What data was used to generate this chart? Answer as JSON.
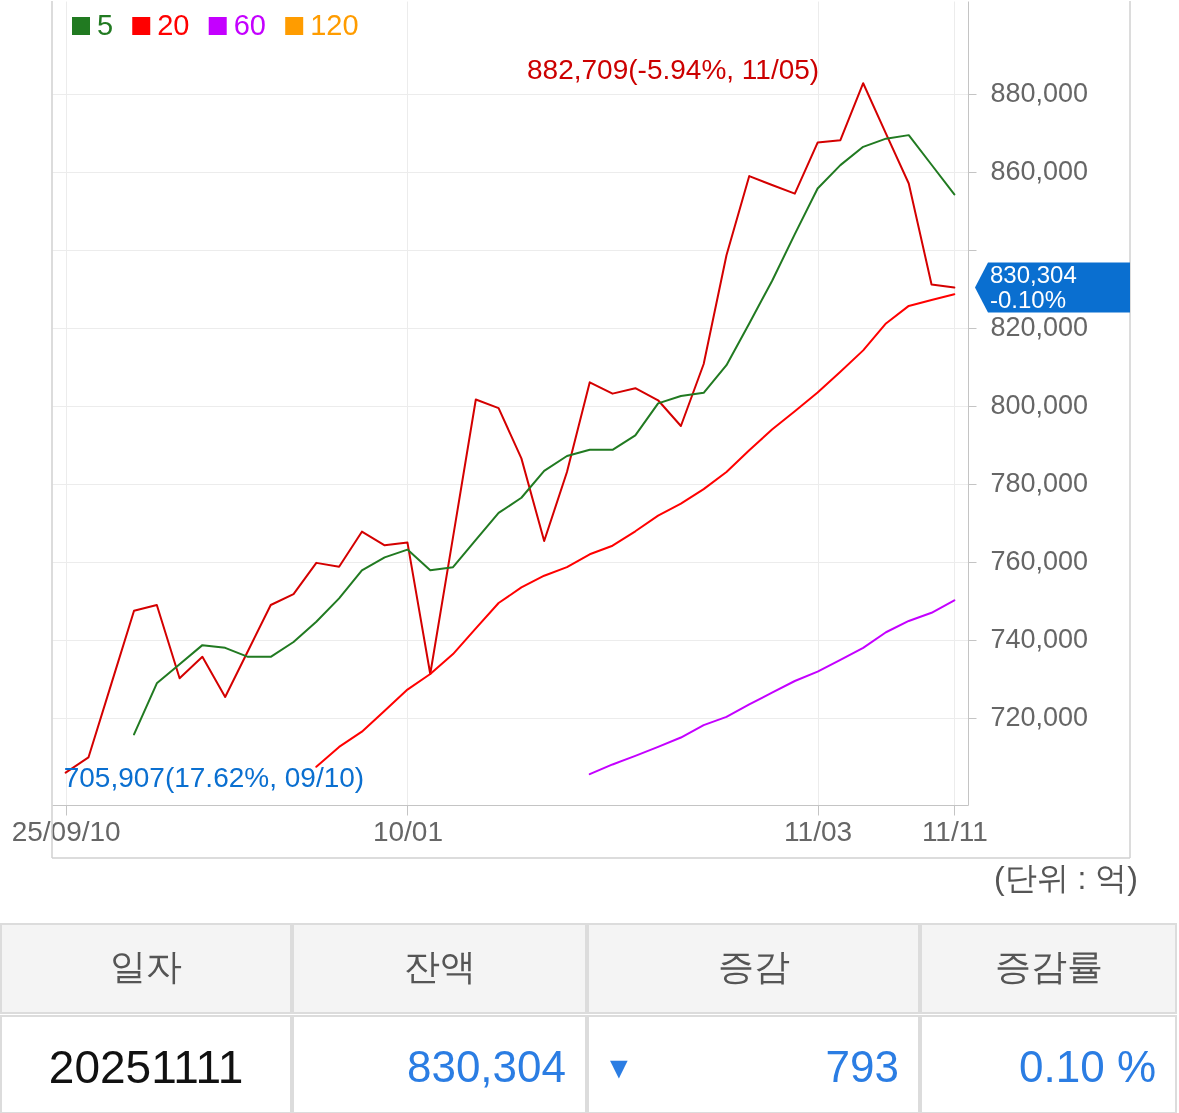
{
  "chart_data": [
    {
      "type": "line",
      "categories": [
        "25/09/10",
        null,
        null,
        null,
        null,
        null,
        null,
        null,
        null,
        null,
        null,
        null,
        null,
        null,
        null,
        "10/01",
        null,
        null,
        null,
        null,
        null,
        null,
        null,
        null,
        null,
        null,
        null,
        null,
        null,
        null,
        null,
        null,
        null,
        "11/03",
        null,
        null,
        null,
        null,
        null,
        "11/11"
      ],
      "series": [
        {
          "color": "#d40000",
          "values": [
            705907,
            709800,
            728600,
            747400,
            748900,
            730100,
            735600,
            725300,
            737100,
            748900,
            751700,
            759700,
            758700,
            767700,
            764200,
            764900,
            731200,
            766300,
            801600,
            799400,
            786500,
            765300,
            783000,
            806000,
            803100,
            804500,
            801400,
            794800,
            810700,
            838600,
            858900,
            856600,
            854400,
            867500,
            868100,
            882709,
            869800,
            857000,
            831097,
            830304
          ]
        },
        {
          "name": "5",
          "color": "#217a21",
          "values": [
            null,
            null,
            null,
            715700,
            728800,
            733700,
            738600,
            737900,
            735600,
            735600,
            739400,
            744600,
            750600,
            757800,
            761100,
            763100,
            757800,
            758600,
            765600,
            772500,
            776400,
            783300,
            787100,
            788700,
            788700,
            792400,
            800600,
            802500,
            803300,
            810400,
            821100,
            832000,
            844000,
            855700,
            861700,
            866400,
            868500,
            869400,
            861800,
            854200
          ]
        },
        {
          "name": "20",
          "color": "#ff0000",
          "values": [
            null,
            null,
            null,
            null,
            null,
            null,
            null,
            null,
            null,
            null,
            null,
            707400,
            712500,
            716400,
            721800,
            727200,
            731200,
            736300,
            742900,
            749400,
            753400,
            756400,
            758600,
            761900,
            764100,
            767800,
            771800,
            774900,
            778600,
            783000,
            788600,
            793900,
            798600,
            803400,
            808700,
            814200,
            821100,
            825600,
            827100,
            828600
          ]
        },
        {
          "name": "60",
          "color": "#c400ff",
          "values": [
            null,
            null,
            null,
            null,
            null,
            null,
            null,
            null,
            null,
            null,
            null,
            null,
            null,
            null,
            null,
            null,
            null,
            null,
            null,
            null,
            null,
            null,
            null,
            705500,
            708000,
            710200,
            712500,
            714900,
            718100,
            720200,
            723400,
            726400,
            729400,
            731800,
            734800,
            737900,
            741900,
            744800,
            746900,
            750100
          ]
        },
        {
          "name": "120",
          "color": "#ff9c00",
          "values": [
            null,
            null,
            null,
            null,
            null,
            null,
            null,
            null,
            null,
            null,
            null,
            null,
            null,
            null,
            null,
            null,
            null,
            null,
            null,
            null,
            null,
            null,
            null,
            null,
            null,
            null,
            null,
            null,
            null,
            null,
            null,
            null,
            null,
            null,
            null,
            null,
            null,
            null,
            null,
            null
          ]
        }
      ],
      "ylim": [
        697600,
        903800
      ],
      "yticks": [
        {
          "value": 720000,
          "label": "720,000"
        },
        {
          "value": 740000,
          "label": "740,000"
        },
        {
          "value": 760000,
          "label": "760,000"
        },
        {
          "value": 780000,
          "label": "780,000"
        },
        {
          "value": 800000,
          "label": "800,000"
        },
        {
          "value": 820000,
          "label": "820,000"
        },
        {
          "value": 840000,
          "label": null
        },
        {
          "value": 860000,
          "label": "860,000"
        },
        {
          "value": 880000,
          "label": "880,000"
        }
      ],
      "grid": true,
      "legend": "top left",
      "annotations": [
        "882,709(-5.94%, 11/05)",
        {
          "text": "705,907(17.62%, 09/10)",
          "x": "25/09/10",
          "y": 705907
        },
        "830,304",
        "-0.10%",
        "(단위 : 억)"
      ]
    },
    {
      "type": "other",
      "categories": [
        "일자",
        "잔액",
        "증감",
        "증감률"
      ],
      "annotations": [
        "20251111",
        "830,304",
        "▼",
        "793",
        "0.10 %"
      ]
    }
  ]
}
